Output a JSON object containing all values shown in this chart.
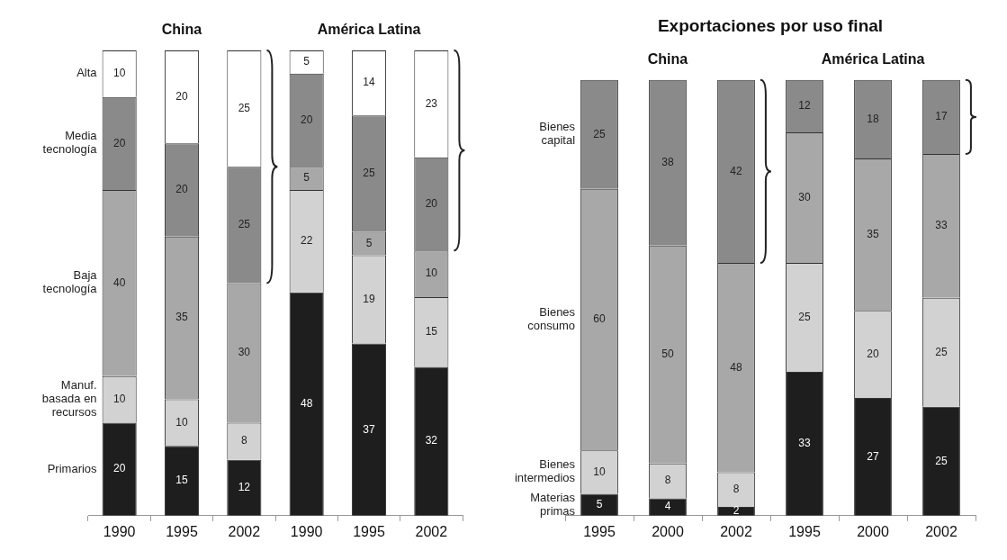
{
  "chart_data": [
    {
      "type": "bar",
      "stacked": true,
      "data_labels": true,
      "grid": false,
      "tick_labels": "x",
      "ylim": [
        0,
        100
      ],
      "categories": [
        "1990",
        "1995",
        "2002",
        "1990",
        "1995",
        "2002"
      ],
      "annotations": [
        "China",
        "América Latina"
      ],
      "series": [
        {
          "name": "Primarios",
          "color": "#1e1e1e",
          "values": [
            20,
            15,
            12,
            48,
            37,
            32
          ]
        },
        {
          "name": "Manuf. basada en recursos",
          "color": "#d2d2d2",
          "values": [
            10,
            10,
            8,
            22,
            19,
            15
          ]
        },
        {
          "name": "Baja tecnología",
          "color": "#a8a8a8",
          "values": [
            40,
            35,
            30,
            5,
            5,
            10
          ]
        },
        {
          "name": "Media tecnología",
          "color": "#8a8a8a",
          "values": [
            20,
            20,
            25,
            20,
            25,
            20
          ]
        },
        {
          "name": "Alta",
          "color": "#ffffff",
          "values": [
            10,
            20,
            25,
            5,
            14,
            23
          ]
        }
      ]
    },
    {
      "type": "bar",
      "stacked": true,
      "data_labels": true,
      "grid": false,
      "tick_labels": "x",
      "ylim": [
        0,
        100
      ],
      "title": "Exportaciones por uso final",
      "categories": [
        "1995",
        "2000",
        "2002",
        "1995",
        "2000",
        "2002"
      ],
      "annotations": [
        "China",
        "América Latina"
      ],
      "series": [
        {
          "name": "Materias primas",
          "color": "#1e1e1e",
          "values": [
            5,
            4,
            2,
            33,
            27,
            25
          ]
        },
        {
          "name": "Bienes intermedios",
          "color": "#d2d2d2",
          "values": [
            10,
            8,
            8,
            25,
            20,
            25
          ]
        },
        {
          "name": "Bienes consumo",
          "color": "#a8a8a8",
          "values": [
            60,
            50,
            48,
            30,
            35,
            33
          ]
        },
        {
          "name": "Bienes capital",
          "color": "#8a8a8a",
          "values": [
            25,
            38,
            42,
            12,
            18,
            17
          ]
        }
      ]
    }
  ]
}
